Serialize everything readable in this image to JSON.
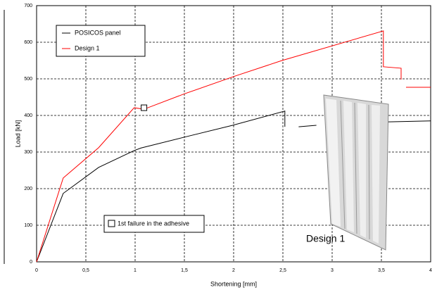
{
  "chart_data": {
    "type": "line",
    "x_label": "Shortening [mm]",
    "y_label": "Load [kN]",
    "series": [
      {
        "name": "POSICOS panel",
        "color": "#000000",
        "x": [
          0,
          0.27,
          0.63,
          0.99,
          1.06,
          1.49,
          1.99,
          2.52,
          2.52,
          null,
          2.66,
          2.84,
          null,
          3.34,
          4.0
        ],
        "values": [
          0,
          187,
          258,
          304,
          311,
          340,
          373,
          412,
          369,
          null,
          369,
          373,
          null,
          381,
          385
        ]
      },
      {
        "name": "Design 1",
        "color": "#ff0000",
        "x": [
          0,
          0.27,
          0.63,
          0.99,
          1.09,
          1.49,
          2.02,
          2.49,
          3.52,
          3.52,
          3.7,
          3.7,
          null,
          3.75,
          4.0
        ],
        "values": [
          0,
          229,
          312,
          421,
          417,
          458,
          508,
          550,
          631,
          533,
          529,
          498,
          null,
          477,
          477
        ]
      }
    ],
    "failure_marker": {
      "label": "1st failure in the adhesive",
      "x": 1.09,
      "y": 421
    },
    "image_caption": "Design 1",
    "xlim": [
      0,
      4
    ],
    "ylim": [
      0,
      700
    ],
    "xticks": [
      0,
      {
        "value": 0.5,
        "label": "0,5"
      },
      1,
      {
        "value": 1.5,
        "label": "1,5"
      },
      2,
      {
        "value": 2.5,
        "label": "2,5"
      },
      3,
      {
        "value": 3.5,
        "label": "3,5"
      },
      4
    ],
    "yticks": [
      0,
      100,
      200,
      300,
      400,
      500,
      600,
      700
    ],
    "grid": true
  }
}
